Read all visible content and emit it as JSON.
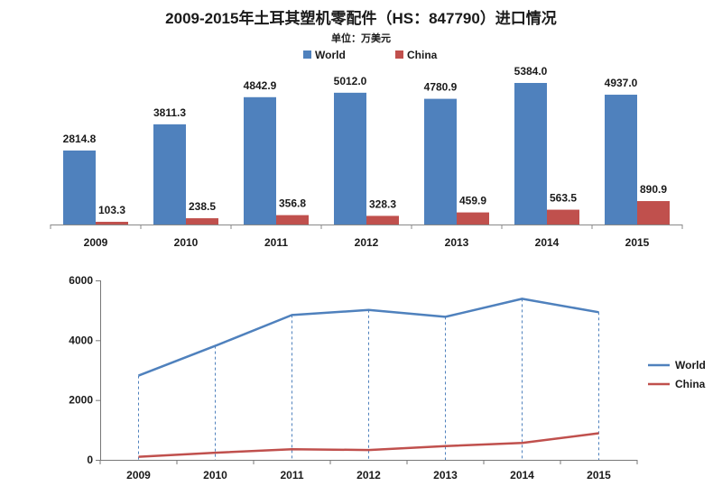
{
  "title": "2009-2015年土耳其塑机零配件（HS：847790）进口情况",
  "unit": "单位：万美元",
  "colors": {
    "world": "#4F81BD",
    "china": "#C0504D"
  },
  "chart_data": [
    {
      "type": "bar",
      "categories": [
        "2009",
        "2010",
        "2011",
        "2012",
        "2013",
        "2014",
        "2015"
      ],
      "series": [
        {
          "name": "World",
          "values": [
            2814.8,
            3811.3,
            4842.9,
            5012.0,
            4780.9,
            5384.0,
            4937.0
          ],
          "labels": [
            "2814.8",
            "3811.3",
            "4842.9",
            "5012.0",
            "4780.9",
            "5384.0",
            "4937.0"
          ]
        },
        {
          "name": "China",
          "values": [
            103.3,
            238.5,
            356.8,
            328.3,
            459.9,
            563.5,
            890.9
          ],
          "labels": [
            "103.3",
            "238.5",
            "356.8",
            "328.3",
            "459.9",
            "563.5",
            "890.9"
          ]
        }
      ],
      "legend": "top"
    },
    {
      "type": "line",
      "categories": [
        "2009",
        "2010",
        "2011",
        "2012",
        "2013",
        "2014",
        "2015"
      ],
      "series": [
        {
          "name": "World",
          "values": [
            2814.8,
            3811.3,
            4842.9,
            5012.0,
            4780.9,
            5384.0,
            4937.0
          ]
        },
        {
          "name": "China",
          "values": [
            103.3,
            238.5,
            356.8,
            328.3,
            459.9,
            563.5,
            890.9
          ]
        }
      ],
      "ylim": [
        0,
        6000
      ],
      "yticks": [
        "0",
        "2000",
        "4000",
        "6000"
      ],
      "legend": "right"
    }
  ]
}
